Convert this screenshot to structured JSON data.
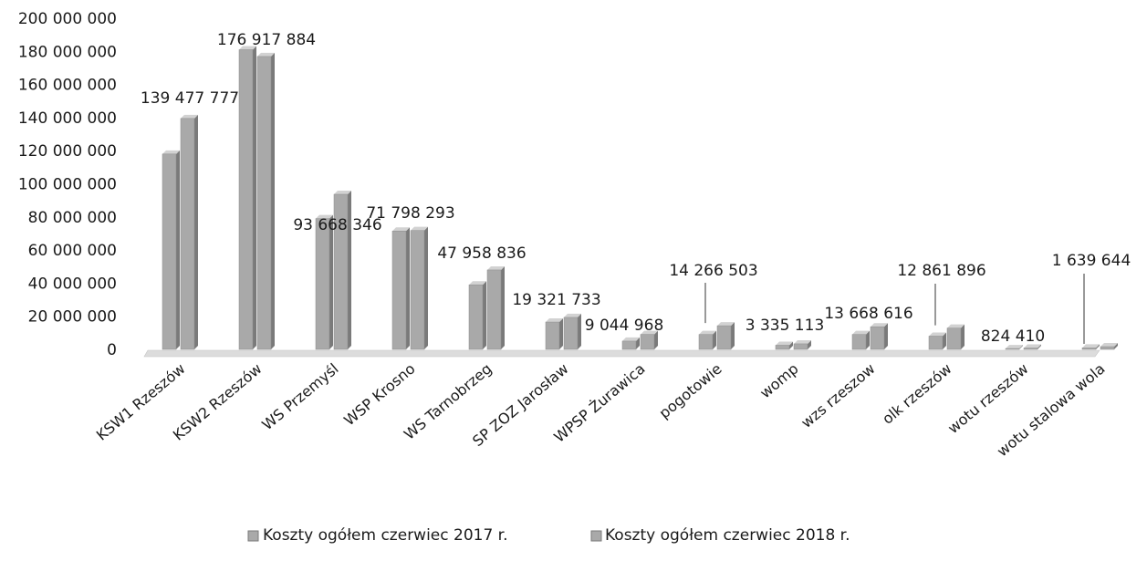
{
  "chart_data": {
    "type": "bar",
    "title": "",
    "xlabel": "",
    "ylabel": "",
    "ylim": [
      0,
      200000000
    ],
    "yticks": [
      0,
      20000000,
      40000000,
      60000000,
      80000000,
      100000000,
      120000000,
      140000000,
      160000000,
      180000000,
      200000000
    ],
    "ytick_labels": [
      "0",
      "20 000 000",
      "40 000 000",
      "60 000 000",
      "80 000 000",
      "100 000 000",
      "120 000 000",
      "140 000 000",
      "160 000 000",
      "180 000 000",
      "200 000 000"
    ],
    "categories": [
      "KSW1 Rzeszów",
      "KSW2 Rzeszów",
      "WS Przemyśl",
      "WSP Krosno",
      "WS Tarnobrzeg",
      "SP ZOZ Jarosław",
      "WPSP Żurawica",
      "pogotowie",
      "womp",
      "wzs rzeszow",
      "olk rzeszów",
      "wotu rzeszów",
      "wotu stalowa wola"
    ],
    "series": [
      {
        "name": "Koszty ogółem czerwiec 2017 r.",
        "values": [
          118000000,
          181000000,
          79000000,
          71500000,
          39000000,
          16500000,
          5000000,
          9000000,
          2500000,
          9000000,
          8000000,
          500000,
          900000
        ]
      },
      {
        "name": "Koszty ogółem czerwiec 2018  r.",
        "values": [
          139477777,
          176917884,
          93668346,
          71798293,
          47958836,
          19321733,
          9044968,
          14266503,
          3335113,
          13668616,
          12861896,
          824410,
          1639644
        ]
      }
    ],
    "data_labels": [
      "139 477 777",
      "176 917 884",
      "93 668 346",
      "71 798 293",
      "47 958 836",
      "19 321 733",
      "9 044 968",
      "14 266 503",
      "3 335 113",
      "13 668 616",
      "12 861 896",
      "824 410",
      "1 639 644"
    ],
    "gridlines": false,
    "legend_position": "bottom"
  },
  "colors": {
    "bar_face": "#a9a9a9",
    "bar_side": "#7a7a7a",
    "bar_top": "#d2d2d2",
    "floor": "#dcdcdc",
    "text": "#1a1a1a"
  }
}
